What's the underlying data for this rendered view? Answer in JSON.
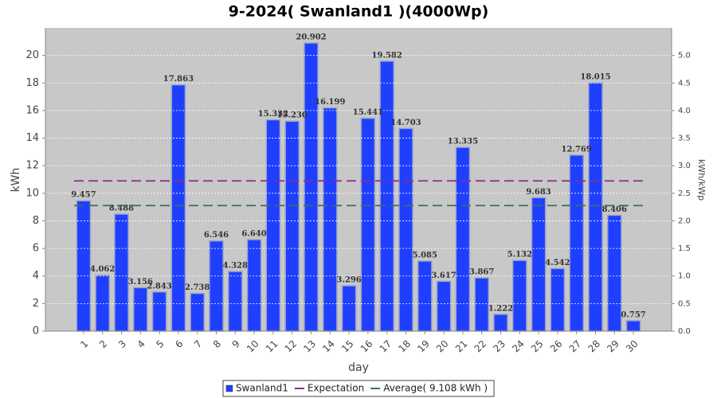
{
  "chart_data": {
    "type": "bar",
    "title": "9-2024( Swanland1 )(4000Wp)",
    "x_label": "day",
    "y_label": "kWh",
    "y2_label": "kWh/kWp",
    "categories": [
      "1",
      "2",
      "3",
      "4",
      "5",
      "6",
      "7",
      "8",
      "9",
      "10",
      "11",
      "12",
      "13",
      "14",
      "15",
      "16",
      "17",
      "18",
      "19",
      "20",
      "21",
      "22",
      "23",
      "24",
      "25",
      "26",
      "27",
      "28",
      "29",
      "30"
    ],
    "series": [
      {
        "name": "Swanland1",
        "color": "#1f3fff",
        "values": [
          9.457,
          4.062,
          8.488,
          3.156,
          2.843,
          17.863,
          2.738,
          6.546,
          4.328,
          6.64,
          15.332,
          15.23,
          20.902,
          16.199,
          3.296,
          15.441,
          19.582,
          14.703,
          5.085,
          3.617,
          13.335,
          3.867,
          1.222,
          5.132,
          9.683,
          4.542,
          12.769,
          18.015,
          8.406,
          0.757
        ],
        "value_labels": [
          "9.457",
          "4.062",
          "8.488",
          "3.156",
          "2.843",
          "17.863",
          "2.738",
          "6.546",
          "4.328",
          "6.640",
          "15.332",
          "15.230",
          "20.902",
          "16.199",
          "3.296",
          "15.441",
          "19.582",
          "14.703",
          "5.085",
          "3.617",
          "13.335",
          "3.867",
          "1.222",
          "5.132",
          "9.683",
          "4.542",
          "12.769",
          "18.015",
          "8.406",
          "0.757"
        ]
      }
    ],
    "reference_lines": [
      {
        "name": "Expectation",
        "color": "#8e2a8e",
        "value": 10.9
      },
      {
        "name": "Average( 9.108 kWh )",
        "color": "#3d6e5e",
        "value": 9.108
      }
    ],
    "ylim": [
      0,
      22
    ],
    "yticks": [
      0,
      2,
      4,
      6,
      8,
      10,
      12,
      14,
      16,
      18,
      20
    ],
    "y2lim": [
      0,
      5.5
    ],
    "y2ticks": [
      {
        "value": 0,
        "label": "0.0"
      },
      0.5,
      {
        "value": 1,
        "label": "1.0"
      },
      1.5,
      {
        "value": 2,
        "label": "2.0"
      },
      2.5,
      {
        "value": 3,
        "label": "3.0"
      },
      3.5,
      {
        "value": 4,
        "label": "4.0"
      },
      4.5,
      {
        "value": 5,
        "label": "5.0"
      }
    ],
    "grid": true,
    "legend": "bottom"
  }
}
